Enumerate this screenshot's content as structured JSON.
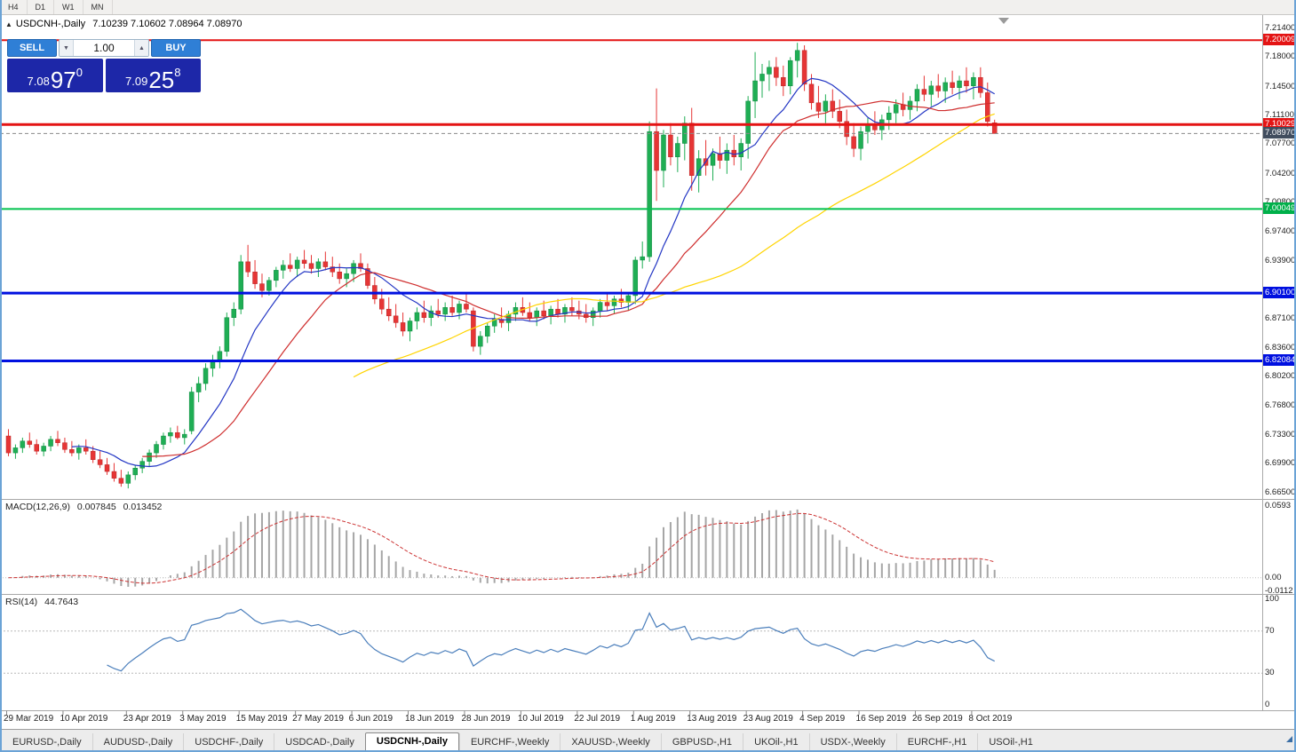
{
  "toolbar": {
    "buttons": [
      {
        "label": "H4"
      },
      {
        "label": "D1"
      },
      {
        "label": "W1"
      },
      {
        "label": "MN"
      }
    ]
  },
  "chart_header": {
    "collapse_icon": "▲",
    "title": "USDCNH-,Daily",
    "ohlc": "7.10239 7.10602 7.08964 7.08970"
  },
  "trade_panel": {
    "sell_label": "SELL",
    "buy_label": "BUY",
    "volume": "1.00",
    "up_icon": "▲",
    "down_icon": "▼",
    "sell_price": {
      "base": "7.08",
      "pips": "97",
      "frac": "0"
    },
    "buy_price": {
      "base": "7.09",
      "pips": "25",
      "frac": "8"
    }
  },
  "price_axis": {
    "ticks": [
      "7.21400",
      "7.18000",
      "7.14500",
      "7.11100",
      "7.07700",
      "7.04200",
      "7.00800",
      "6.97400",
      "6.93900",
      "6.87100",
      "6.83600",
      "6.80200",
      "6.76800",
      "6.73300",
      "6.69900",
      "6.66500"
    ]
  },
  "hlines": [
    {
      "price": 7.20009,
      "label": "7.20009",
      "color": "#e41414",
      "width": 2,
      "badge": "#e41414"
    },
    {
      "price": 7.10029,
      "label": "7.10029",
      "color": "#e41414",
      "width": 3,
      "badge": "#e41414"
    },
    {
      "price": 7.0897,
      "label": "7.08970",
      "color": "#8a8a8a",
      "width": 1,
      "dash": true,
      "badge": "#414d5e",
      "current": true
    },
    {
      "price": 7.00049,
      "label": "7.00049",
      "color": "#00c24e",
      "width": 2,
      "badge": "#00b04a"
    },
    {
      "price": 6.901,
      "label": "6.90100",
      "color": "#0010e0",
      "width": 3,
      "badge": "#0010e0"
    },
    {
      "price": 6.82084,
      "label": "6.82084",
      "color": "#0010e0",
      "width": 3,
      "badge": "#0010e0"
    }
  ],
  "macd": {
    "label": "MACD(12,26,9)",
    "value_main": "0.007845",
    "value_signal": "0.013452",
    "params": {
      "fast": 12,
      "slow": 26,
      "signal": 9
    },
    "range": [
      -0.0112,
      0.0593
    ],
    "axis_ticks": [
      {
        "v": 0.0593,
        "label": "0.0593"
      },
      {
        "v": 0,
        "label": "0.00"
      },
      {
        "v": -0.0112,
        "label": "-0.0112"
      }
    ],
    "hist_color": "#a6a6a6",
    "signal_color": "#cc3333"
  },
  "rsi": {
    "label": "RSI(14)",
    "value": "44.7643",
    "period": 14,
    "axis_ticks": [
      {
        "v": 100,
        "label": "100"
      },
      {
        "v": 70,
        "label": "70"
      },
      {
        "v": 30,
        "label": "30"
      },
      {
        "v": 0,
        "label": "0"
      }
    ],
    "levels": [
      70,
      30
    ],
    "line_color": "#4a7ebb"
  },
  "tabs": [
    {
      "label": "EURUSD-,Daily"
    },
    {
      "label": "AUDUSD-,Daily"
    },
    {
      "label": "USDCHF-,Daily"
    },
    {
      "label": "USDCAD-,Daily"
    },
    {
      "label": "USDCNH-,Daily",
      "active": true
    },
    {
      "label": "EURCHF-,Weekly"
    },
    {
      "label": "XAUUSD-,Weekly"
    },
    {
      "label": "GBPUSD-,H1"
    },
    {
      "label": "UKOil-,H1"
    },
    {
      "label": "USDX-,Weekly"
    },
    {
      "label": "EURCHF-,H1"
    },
    {
      "label": "USOil-,H1"
    }
  ],
  "chart_data": {
    "type": "candlestick",
    "symbol": "USDCNH-",
    "timeframe": "Daily",
    "up_color": "#1fae54",
    "down_color": "#e63535",
    "price_range": [
      6.6575,
      7.2245
    ],
    "moving_averages": [
      {
        "type": "sma",
        "period": 10,
        "color": "#2336c4"
      },
      {
        "type": "sma",
        "period": 20,
        "color": "#cf2e2e"
      },
      {
        "type": "sma",
        "period": 50,
        "color": "#ffd400"
      }
    ],
    "x_labels": [
      {
        "i": 0,
        "label": "29 Mar 2019"
      },
      {
        "i": 8,
        "label": "10 Apr 2019"
      },
      {
        "i": 17,
        "label": "23 Apr 2019"
      },
      {
        "i": 25,
        "label": "3 May 2019"
      },
      {
        "i": 33,
        "label": "15 May 2019"
      },
      {
        "i": 41,
        "label": "27 May 2019"
      },
      {
        "i": 49,
        "label": "6 Jun 2019"
      },
      {
        "i": 57,
        "label": "18 Jun 2019"
      },
      {
        "i": 65,
        "label": "28 Jun 2019"
      },
      {
        "i": 73,
        "label": "10 Jul 2019"
      },
      {
        "i": 81,
        "label": "22 Jul 2019"
      },
      {
        "i": 89,
        "label": "1 Aug 2019"
      },
      {
        "i": 97,
        "label": "13 Aug 2019"
      },
      {
        "i": 105,
        "label": "23 Aug 2019"
      },
      {
        "i": 113,
        "label": "4 Sep 2019"
      },
      {
        "i": 121,
        "label": "16 Sep 2019"
      },
      {
        "i": 129,
        "label": "26 Sep 2019"
      },
      {
        "i": 137,
        "label": "8 Oct 2019"
      }
    ],
    "candles": [
      [
        6.732,
        6.74,
        6.708,
        6.712
      ],
      [
        6.712,
        6.722,
        6.705,
        6.718
      ],
      [
        6.718,
        6.73,
        6.712,
        6.726
      ],
      [
        6.726,
        6.736,
        6.718,
        6.722
      ],
      [
        6.722,
        6.728,
        6.71,
        6.714
      ],
      [
        6.714,
        6.724,
        6.708,
        6.72
      ],
      [
        6.72,
        6.732,
        6.714,
        6.728
      ],
      [
        6.728,
        6.738,
        6.72,
        6.724
      ],
      [
        6.724,
        6.73,
        6.712,
        6.716
      ],
      [
        6.716,
        6.726,
        6.708,
        6.712
      ],
      [
        6.712,
        6.722,
        6.704,
        6.718
      ],
      [
        6.718,
        6.728,
        6.71,
        6.714
      ],
      [
        6.714,
        6.72,
        6.7,
        6.704
      ],
      [
        6.704,
        6.714,
        6.694,
        6.698
      ],
      [
        6.698,
        6.706,
        6.686,
        6.69
      ],
      [
        6.69,
        6.7,
        6.678,
        6.682
      ],
      [
        6.682,
        6.692,
        6.672,
        6.676
      ],
      [
        6.676,
        6.69,
        6.67,
        6.686
      ],
      [
        6.686,
        6.698,
        6.68,
        6.694
      ],
      [
        6.694,
        6.706,
        6.688,
        6.702
      ],
      [
        6.702,
        6.716,
        6.696,
        6.712
      ],
      [
        6.712,
        6.726,
        6.706,
        6.722
      ],
      [
        6.722,
        6.736,
        6.716,
        6.732
      ],
      [
        6.732,
        6.742,
        6.724,
        6.736
      ],
      [
        6.736,
        6.744,
        6.728,
        6.73
      ],
      [
        6.73,
        6.74,
        6.722,
        6.734
      ],
      [
        6.738,
        6.79,
        6.734,
        6.784
      ],
      [
        6.784,
        6.802,
        6.772,
        6.794
      ],
      [
        6.794,
        6.818,
        6.786,
        6.812
      ],
      [
        6.812,
        6.828,
        6.802,
        6.822
      ],
      [
        6.822,
        6.838,
        6.812,
        6.832
      ],
      [
        6.832,
        6.878,
        6.826,
        6.872
      ],
      [
        6.872,
        6.89,
        6.862,
        6.882
      ],
      [
        6.882,
        6.946,
        6.876,
        6.938
      ],
      [
        6.938,
        6.958,
        6.92,
        6.926
      ],
      [
        6.926,
        6.94,
        6.906,
        6.912
      ],
      [
        6.912,
        6.924,
        6.896,
        6.904
      ],
      [
        6.904,
        6.92,
        6.898,
        6.916
      ],
      [
        6.916,
        6.932,
        6.908,
        6.928
      ],
      [
        6.928,
        6.94,
        6.918,
        6.934
      ],
      [
        6.934,
        6.948,
        6.926,
        6.93
      ],
      [
        6.93,
        6.944,
        6.92,
        6.94
      ],
      [
        6.94,
        6.952,
        6.93,
        6.936
      ],
      [
        6.936,
        6.946,
        6.924,
        6.93
      ],
      [
        6.93,
        6.942,
        6.92,
        6.938
      ],
      [
        6.938,
        6.95,
        6.928,
        6.932
      ],
      [
        6.932,
        6.944,
        6.92,
        6.926
      ],
      [
        6.926,
        6.936,
        6.912,
        6.918
      ],
      [
        6.918,
        6.93,
        6.908,
        6.924
      ],
      [
        6.924,
        6.94,
        6.914,
        6.936
      ],
      [
        6.936,
        6.948,
        6.926,
        6.93
      ],
      [
        6.93,
        6.936,
        6.906,
        6.91
      ],
      [
        6.91,
        6.92,
        6.888,
        6.894
      ],
      [
        6.894,
        6.906,
        6.876,
        6.882
      ],
      [
        6.882,
        6.896,
        6.868,
        6.874
      ],
      [
        6.874,
        6.888,
        6.86,
        6.866
      ],
      [
        6.866,
        6.878,
        6.85,
        6.856
      ],
      [
        6.856,
        6.872,
        6.844,
        6.868
      ],
      [
        6.868,
        6.884,
        6.858,
        6.878
      ],
      [
        6.878,
        6.892,
        6.866,
        6.872
      ],
      [
        6.872,
        6.886,
        6.862,
        6.88
      ],
      [
        6.88,
        6.894,
        6.872,
        6.876
      ],
      [
        6.876,
        6.89,
        6.868,
        6.884
      ],
      [
        6.884,
        6.898,
        6.874,
        6.878
      ],
      [
        6.878,
        6.892,
        6.87,
        6.888
      ],
      [
        6.888,
        6.9,
        6.878,
        6.882
      ],
      [
        6.88,
        6.884,
        6.832,
        6.838
      ],
      [
        6.838,
        6.856,
        6.828,
        6.85
      ],
      [
        6.85,
        6.866,
        6.842,
        6.862
      ],
      [
        6.862,
        6.876,
        6.854,
        6.87
      ],
      [
        6.87,
        6.884,
        6.86,
        6.866
      ],
      [
        6.866,
        6.88,
        6.856,
        6.876
      ],
      [
        6.876,
        6.89,
        6.868,
        6.884
      ],
      [
        6.884,
        6.896,
        6.874,
        6.878
      ],
      [
        6.878,
        6.89,
        6.868,
        6.872
      ],
      [
        6.872,
        6.884,
        6.862,
        6.88
      ],
      [
        6.88,
        6.892,
        6.87,
        6.874
      ],
      [
        6.874,
        6.886,
        6.864,
        6.882
      ],
      [
        6.882,
        6.894,
        6.872,
        6.876
      ],
      [
        6.876,
        6.888,
        6.866,
        6.884
      ],
      [
        6.884,
        6.896,
        6.874,
        6.88
      ],
      [
        6.88,
        6.892,
        6.87,
        6.876
      ],
      [
        6.876,
        6.888,
        6.866,
        6.872
      ],
      [
        6.872,
        6.884,
        6.862,
        6.88
      ],
      [
        6.88,
        6.894,
        6.872,
        6.89
      ],
      [
        6.89,
        6.902,
        6.88,
        6.886
      ],
      [
        6.886,
        6.898,
        6.876,
        6.894
      ],
      [
        6.894,
        6.906,
        6.884,
        6.89
      ],
      [
        6.89,
        6.902,
        6.88,
        6.898
      ],
      [
        6.898,
        6.944,
        6.888,
        6.94
      ],
      [
        6.94,
        6.962,
        6.93,
        6.944
      ],
      [
        6.944,
        7.104,
        6.938,
        7.092
      ],
      [
        7.092,
        7.143,
        7.01,
        7.046
      ],
      [
        7.046,
        7.094,
        7.026,
        7.088
      ],
      [
        7.088,
        7.102,
        7.052,
        7.062
      ],
      [
        7.062,
        7.086,
        7.044,
        7.078
      ],
      [
        7.078,
        7.11,
        7.058,
        7.102
      ],
      [
        7.102,
        7.12,
        7.022,
        7.04
      ],
      [
        7.04,
        7.07,
        7.02,
        7.06
      ],
      [
        7.06,
        7.082,
        7.04,
        7.052
      ],
      [
        7.052,
        7.072,
        7.034,
        7.066
      ],
      [
        7.066,
        7.086,
        7.048,
        7.058
      ],
      [
        7.058,
        7.078,
        7.042,
        7.07
      ],
      [
        7.07,
        7.088,
        7.052,
        7.062
      ],
      [
        7.062,
        7.084,
        7.046,
        7.078
      ],
      [
        7.078,
        7.134,
        7.06,
        7.128
      ],
      [
        7.128,
        7.186,
        7.108,
        7.152
      ],
      [
        7.152,
        7.172,
        7.132,
        7.16
      ],
      [
        7.16,
        7.176,
        7.14,
        7.168
      ],
      [
        7.168,
        7.18,
        7.146,
        7.156
      ],
      [
        7.156,
        7.17,
        7.134,
        7.146
      ],
      [
        7.146,
        7.18,
        7.136,
        7.176
      ],
      [
        7.176,
        7.197,
        7.156,
        7.188
      ],
      [
        7.188,
        7.194,
        7.14,
        7.148
      ],
      [
        7.148,
        7.16,
        7.118,
        7.126
      ],
      [
        7.126,
        7.146,
        7.108,
        7.116
      ],
      [
        7.116,
        7.136,
        7.102,
        7.128
      ],
      [
        7.128,
        7.142,
        7.108,
        7.116
      ],
      [
        7.116,
        7.13,
        7.096,
        7.104
      ],
      [
        7.104,
        7.118,
        7.076,
        7.086
      ],
      [
        7.086,
        7.102,
        7.062,
        7.072
      ],
      [
        7.072,
        7.098,
        7.058,
        7.092
      ],
      [
        7.092,
        7.108,
        7.078,
        7.1
      ],
      [
        7.1,
        7.116,
        7.088,
        7.094
      ],
      [
        7.094,
        7.112,
        7.082,
        7.106
      ],
      [
        7.106,
        7.122,
        7.094,
        7.114
      ],
      [
        7.114,
        7.13,
        7.102,
        7.124
      ],
      [
        7.124,
        7.138,
        7.11,
        7.118
      ],
      [
        7.118,
        7.134,
        7.106,
        7.128
      ],
      [
        7.128,
        7.148,
        7.116,
        7.142
      ],
      [
        7.142,
        7.158,
        7.128,
        7.136
      ],
      [
        7.136,
        7.152,
        7.122,
        7.146
      ],
      [
        7.146,
        7.16,
        7.132,
        7.14
      ],
      [
        7.14,
        7.156,
        7.126,
        7.15
      ],
      [
        7.15,
        7.164,
        7.136,
        7.144
      ],
      [
        7.144,
        7.158,
        7.13,
        7.152
      ],
      [
        7.152,
        7.168,
        7.138,
        7.146
      ],
      [
        7.146,
        7.162,
        7.13,
        7.156
      ],
      [
        7.156,
        7.168,
        7.132,
        7.138
      ],
      [
        7.138,
        7.15,
        7.098,
        7.104
      ],
      [
        7.10239,
        7.10602,
        7.08964,
        7.0897
      ]
    ]
  }
}
